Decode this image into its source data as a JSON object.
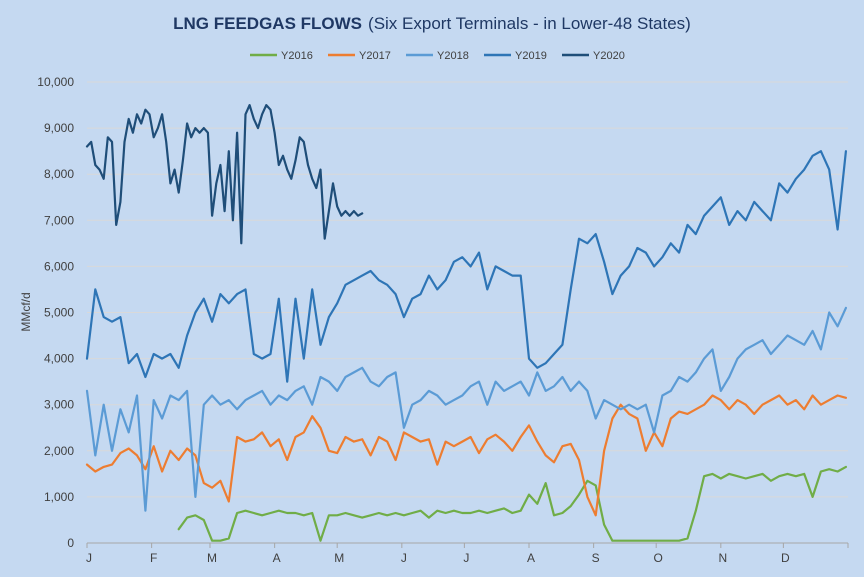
{
  "chart_data": {
    "type": "line",
    "title": "LNG FEEDGAS FLOWS",
    "subtitle": "(Six Export Terminals - in Lower-48 States)",
    "ylabel": "MMcf/d",
    "xlabel": "",
    "ylim": [
      0,
      10000
    ],
    "yticks": [
      "0",
      "1,000",
      "2,000",
      "3,000",
      "4,000",
      "5,000",
      "6,000",
      "7,000",
      "8,000",
      "9,000",
      "10,000"
    ],
    "x_tick_labels": [
      "J",
      "F",
      "M",
      "A",
      "M",
      "J",
      "J",
      "A",
      "S",
      "O",
      "N",
      "D"
    ],
    "x_tick_days": [
      0,
      31,
      59,
      90,
      120,
      151,
      181,
      212,
      243,
      273,
      304,
      334
    ],
    "xlim": [
      0,
      365
    ],
    "grid": true,
    "legend_position": "top",
    "series": [
      {
        "name": "Y2016",
        "color": "#70ad47",
        "x": [
          44,
          48,
          52,
          56,
          60,
          64,
          68,
          72,
          76,
          80,
          84,
          88,
          92,
          96,
          100,
          104,
          108,
          112,
          116,
          120,
          124,
          128,
          132,
          136,
          140,
          144,
          148,
          152,
          156,
          160,
          164,
          168,
          172,
          176,
          180,
          184,
          188,
          192,
          196,
          200,
          204,
          208,
          212,
          216,
          220,
          224,
          228,
          232,
          236,
          240,
          244,
          248,
          252,
          256,
          260,
          264,
          268,
          272,
          276,
          280,
          284,
          288,
          292,
          296,
          300,
          304,
          308,
          312,
          316,
          320,
          324,
          328,
          332,
          336,
          340,
          344,
          348,
          352,
          356,
          360,
          364
        ],
        "values": [
          300,
          550,
          600,
          500,
          50,
          50,
          100,
          650,
          700,
          650,
          600,
          650,
          700,
          650,
          650,
          600,
          650,
          50,
          600,
          600,
          650,
          600,
          550,
          600,
          650,
          600,
          650,
          600,
          650,
          700,
          550,
          700,
          650,
          700,
          650,
          650,
          700,
          650,
          700,
          750,
          650,
          700,
          1050,
          850,
          1300,
          600,
          650,
          800,
          1050,
          1350,
          1250,
          400,
          50,
          50,
          50,
          50,
          50,
          50,
          50,
          50,
          50,
          100,
          700,
          1450,
          1500,
          1400,
          1500,
          1450,
          1400,
          1450,
          1500,
          1350,
          1450,
          1500,
          1450,
          1500,
          1000,
          1550,
          1600,
          1550,
          1650
        ]
      },
      {
        "name": "Y2017",
        "color": "#ed7d31",
        "x": [
          0,
          4,
          8,
          12,
          16,
          20,
          24,
          28,
          32,
          36,
          40,
          44,
          48,
          52,
          56,
          60,
          64,
          68,
          72,
          76,
          80,
          84,
          88,
          92,
          96,
          100,
          104,
          108,
          112,
          116,
          120,
          124,
          128,
          132,
          136,
          140,
          144,
          148,
          152,
          156,
          160,
          164,
          168,
          172,
          176,
          180,
          184,
          188,
          192,
          196,
          200,
          204,
          208,
          212,
          216,
          220,
          224,
          228,
          232,
          236,
          240,
          244,
          248,
          252,
          256,
          260,
          264,
          268,
          272,
          276,
          280,
          284,
          288,
          292,
          296,
          300,
          304,
          308,
          312,
          316,
          320,
          324,
          328,
          332,
          336,
          340,
          344,
          348,
          352,
          356,
          360,
          364
        ],
        "values": [
          1700,
          1550,
          1650,
          1700,
          1950,
          2050,
          1900,
          1600,
          2100,
          1550,
          2000,
          1800,
          2050,
          1900,
          1300,
          1200,
          1350,
          900,
          2300,
          2200,
          2250,
          2400,
          2100,
          2250,
          1800,
          2300,
          2400,
          2750,
          2500,
          2000,
          1950,
          2300,
          2200,
          2250,
          1900,
          2300,
          2200,
          1800,
          2400,
          2300,
          2200,
          2250,
          1700,
          2200,
          2100,
          2200,
          2300,
          1950,
          2250,
          2350,
          2200,
          2000,
          2300,
          2550,
          2200,
          1900,
          1750,
          2100,
          2150,
          1800,
          1000,
          600,
          2000,
          2700,
          3000,
          2800,
          2700,
          2000,
          2400,
          2100,
          2700,
          2850,
          2800,
          2900,
          3000,
          3200,
          3100,
          2900,
          3100,
          3000,
          2800,
          3000,
          3100,
          3200,
          3000,
          3100,
          2900,
          3200,
          3000,
          3100,
          3200,
          3150
        ]
      },
      {
        "name": "Y2018",
        "color": "#5b9bd5",
        "x": [
          0,
          4,
          8,
          12,
          16,
          20,
          24,
          28,
          32,
          36,
          40,
          44,
          48,
          52,
          56,
          60,
          64,
          68,
          72,
          76,
          80,
          84,
          88,
          92,
          96,
          100,
          104,
          108,
          112,
          116,
          120,
          124,
          128,
          132,
          136,
          140,
          144,
          148,
          152,
          156,
          160,
          164,
          168,
          172,
          176,
          180,
          184,
          188,
          192,
          196,
          200,
          204,
          208,
          212,
          216,
          220,
          224,
          228,
          232,
          236,
          240,
          244,
          248,
          252,
          256,
          260,
          264,
          268,
          272,
          276,
          280,
          284,
          288,
          292,
          296,
          300,
          304,
          308,
          312,
          316,
          320,
          324,
          328,
          332,
          336,
          340,
          344,
          348,
          352,
          356,
          360,
          364
        ],
        "values": [
          3300,
          1900,
          3000,
          2000,
          2900,
          2400,
          3200,
          700,
          3100,
          2700,
          3200,
          3100,
          3300,
          1000,
          3000,
          3200,
          3000,
          3100,
          2900,
          3100,
          3200,
          3300,
          3000,
          3200,
          3100,
          3300,
          3400,
          3000,
          3600,
          3500,
          3300,
          3600,
          3700,
          3800,
          3500,
          3400,
          3600,
          3700,
          2500,
          3000,
          3100,
          3300,
          3200,
          3000,
          3100,
          3200,
          3400,
          3500,
          3000,
          3500,
          3300,
          3400,
          3500,
          3200,
          3700,
          3300,
          3400,
          3600,
          3300,
          3500,
          3300,
          2700,
          3100,
          3000,
          2900,
          3000,
          2900,
          3000,
          2400,
          3200,
          3300,
          3600,
          3500,
          3700,
          4000,
          4200,
          3300,
          3600,
          4000,
          4200,
          4300,
          4400,
          4100,
          4300,
          4500,
          4400,
          4300,
          4600,
          4200,
          5000,
          4700,
          5100
        ]
      },
      {
        "name": "Y2019",
        "color": "#2e75b6",
        "x": [
          0,
          4,
          8,
          12,
          16,
          20,
          24,
          28,
          32,
          36,
          40,
          44,
          48,
          52,
          56,
          60,
          64,
          68,
          72,
          76,
          80,
          84,
          88,
          92,
          96,
          100,
          104,
          108,
          112,
          116,
          120,
          124,
          128,
          132,
          136,
          140,
          144,
          148,
          152,
          156,
          160,
          164,
          168,
          172,
          176,
          180,
          184,
          188,
          192,
          196,
          200,
          204,
          208,
          212,
          216,
          220,
          224,
          228,
          232,
          236,
          240,
          244,
          248,
          252,
          256,
          260,
          264,
          268,
          272,
          276,
          280,
          284,
          288,
          292,
          296,
          300,
          304,
          308,
          312,
          316,
          320,
          324,
          328,
          332,
          336,
          340,
          344,
          348,
          352,
          356,
          360,
          364
        ],
        "values": [
          4000,
          5500,
          4900,
          4800,
          4900,
          3900,
          4100,
          3600,
          4100,
          4000,
          4100,
          3800,
          4500,
          5000,
          5300,
          4800,
          5400,
          5200,
          5400,
          5500,
          4100,
          4000,
          4100,
          5300,
          3500,
          5300,
          4000,
          5500,
          4300,
          4900,
          5200,
          5600,
          5700,
          5800,
          5900,
          5700,
          5600,
          5400,
          4900,
          5300,
          5400,
          5800,
          5500,
          5700,
          6100,
          6200,
          6000,
          6300,
          5500,
          6000,
          5900,
          5800,
          5800,
          4000,
          3800,
          3900,
          4100,
          4300,
          5500,
          6600,
          6500,
          6700,
          6100,
          5400,
          5800,
          6000,
          6400,
          6300,
          6000,
          6200,
          6500,
          6300,
          6900,
          6700,
          7100,
          7300,
          7500,
          6900,
          7200,
          7000,
          7400,
          7200,
          7000,
          7800,
          7600,
          7900,
          8100,
          8400,
          8500,
          8100,
          6800,
          8500
        ]
      },
      {
        "name": "Y2020",
        "color": "#1f4e79",
        "x": [
          0,
          2,
          4,
          6,
          8,
          10,
          12,
          14,
          16,
          18,
          20,
          22,
          24,
          26,
          28,
          30,
          32,
          34,
          36,
          38,
          40,
          42,
          44,
          46,
          48,
          50,
          52,
          54,
          56,
          58,
          60,
          62,
          64,
          66,
          68,
          70,
          72,
          74,
          76,
          78,
          80,
          82,
          84,
          86,
          88,
          90,
          92,
          94,
          96,
          98,
          100,
          102,
          104,
          106,
          108,
          110,
          112,
          114,
          116,
          118,
          120,
          122,
          124,
          126,
          128,
          130,
          132
        ],
        "values": [
          8600,
          8700,
          8200,
          8100,
          7900,
          8800,
          8700,
          6900,
          7400,
          8700,
          9200,
          8900,
          9300,
          9100,
          9400,
          9300,
          8800,
          9000,
          9300,
          8700,
          7800,
          8100,
          7600,
          8300,
          9100,
          8800,
          9000,
          8900,
          9000,
          8900,
          7100,
          7800,
          8200,
          7200,
          8500,
          7000,
          8900,
          6500,
          9300,
          9500,
          9200,
          9000,
          9300,
          9500,
          9400,
          8900,
          8200,
          8400,
          8100,
          7900,
          8300,
          8800,
          8700,
          8200,
          7900,
          7700,
          8100,
          6600,
          7200,
          7800,
          7300,
          7100,
          7200,
          7100,
          7200,
          7100,
          7150
        ]
      }
    ]
  }
}
